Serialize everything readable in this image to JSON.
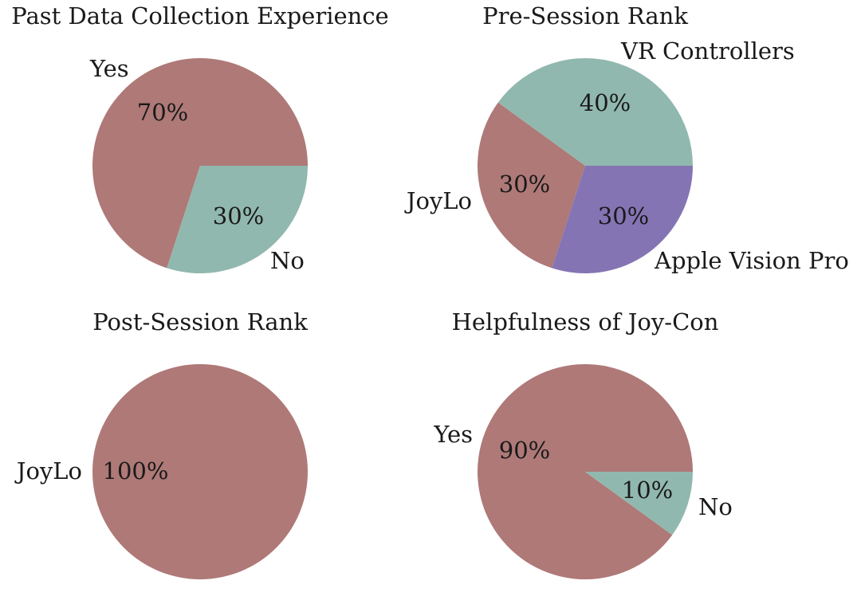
{
  "chart_data": [
    {
      "type": "pie",
      "title": "Past Data Collection Experience",
      "slices": [
        {
          "label": "Yes",
          "value": 70,
          "pct_label": "70%",
          "color": "#ae7977"
        },
        {
          "label": "No",
          "value": 30,
          "pct_label": "30%",
          "color": "#91b8ae"
        }
      ]
    },
    {
      "type": "pie",
      "title": "Pre-Session Rank",
      "slices": [
        {
          "label": "VR Controllers",
          "value": 40,
          "pct_label": "40%",
          "color": "#91b8ae"
        },
        {
          "label": "JoyLo",
          "value": 30,
          "pct_label": "30%",
          "color": "#ae7977"
        },
        {
          "label": "Apple Vision Pro",
          "value": 30,
          "pct_label": "30%",
          "color": "#8574b4"
        }
      ]
    },
    {
      "type": "pie",
      "title": "Post-Session Rank",
      "slices": [
        {
          "label": "JoyLo",
          "value": 100,
          "pct_label": "100%",
          "color": "#ae7977"
        }
      ]
    },
    {
      "type": "pie",
      "title": "Helpfulness of Joy-Con",
      "slices": [
        {
          "label": "Yes",
          "value": 90,
          "pct_label": "90%",
          "color": "#ae7977"
        },
        {
          "label": "No",
          "value": 10,
          "pct_label": "10%",
          "color": "#91b8ae"
        }
      ]
    }
  ]
}
